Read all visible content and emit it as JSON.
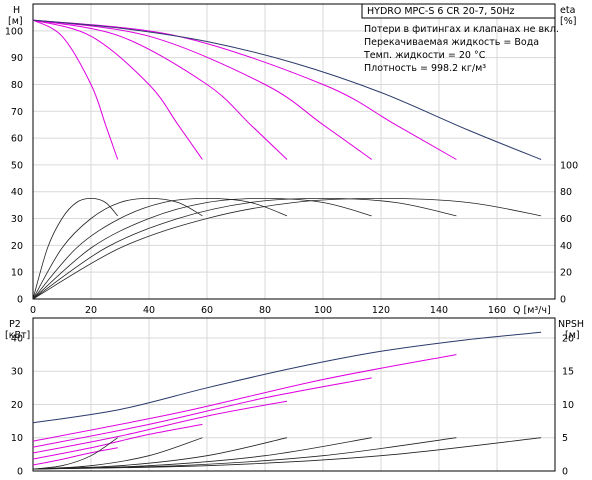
{
  "chart_data": [
    {
      "type": "line",
      "title": "HYDRO MPC-S 6 CR 20-7, 50Hz",
      "notes": [
        "Потери в фитингах и клапанах не вкл.",
        "Перекачиваемая жидкость = Вода",
        "Темп. жидкости = 20 °C",
        "Плотность = 998.2 кг/м³"
      ],
      "xlabel": "Q [м³/ч]",
      "xticks": [
        "0",
        "20",
        "40",
        "60",
        "80",
        "100",
        "120",
        "140",
        "160"
      ],
      "xlim": [
        0,
        180
      ],
      "y_left": {
        "label_top": "H",
        "label_unit": "[м]",
        "ylim": [
          0,
          110
        ],
        "ticks": [
          "0",
          "10",
          "20",
          "30",
          "40",
          "50",
          "60",
          "70",
          "80",
          "90",
          "100"
        ]
      },
      "y_right": {
        "label_top": "eta",
        "label_unit": "[%]",
        "ylim": [
          0,
          110
        ],
        "ticks": [
          "0",
          "20",
          "40",
          "60",
          "80",
          "100"
        ]
      },
      "head_curves": [
        {
          "pumps": 1,
          "color": "#e000e0",
          "x": [
            0,
            10,
            20,
            25,
            29.2
          ],
          "y": [
            104,
            98,
            80,
            65,
            52
          ]
        },
        {
          "pumps": 2,
          "color": "#e000e0",
          "x": [
            0,
            20,
            40,
            50,
            58.4
          ],
          "y": [
            104,
            98,
            80,
            65,
            52
          ]
        },
        {
          "pumps": 3,
          "color": "#e000e0",
          "x": [
            0,
            30,
            60,
            75,
            87.6
          ],
          "y": [
            104,
            98,
            80,
            65,
            52
          ]
        },
        {
          "pumps": 4,
          "color": "#e000e0",
          "x": [
            0,
            40,
            80,
            100,
            116.8
          ],
          "y": [
            104,
            98,
            80,
            65,
            52
          ]
        },
        {
          "pumps": 5,
          "color": "#e000e0",
          "x": [
            0,
            50,
            100,
            125,
            146
          ],
          "y": [
            104,
            98,
            80,
            65,
            52
          ]
        },
        {
          "pumps": 6,
          "color": "#2b3a6b",
          "x": [
            0,
            30,
            60,
            90,
            120,
            150,
            175.2
          ],
          "y": [
            104,
            101,
            96,
            88,
            77,
            63,
            52
          ]
        }
      ],
      "eta_curves": [
        {
          "pumps": 1,
          "x": [
            0,
            5,
            10,
            15,
            20,
            25,
            29.2
          ],
          "eta": [
            0,
            38,
            60,
            72,
            75,
            72,
            62
          ]
        },
        {
          "pumps": 2,
          "x": [
            0,
            10,
            20,
            30,
            40,
            50,
            58.4
          ],
          "eta": [
            0,
            38,
            60,
            72,
            75,
            72,
            62
          ]
        },
        {
          "pumps": 3,
          "x": [
            0,
            15,
            30,
            45,
            60,
            75,
            87.6
          ],
          "eta": [
            0,
            38,
            60,
            72,
            75,
            72,
            62
          ]
        },
        {
          "pumps": 4,
          "x": [
            0,
            20,
            40,
            60,
            80,
            100,
            116.8
          ],
          "eta": [
            0,
            38,
            60,
            72,
            75,
            72,
            62
          ]
        },
        {
          "pumps": 5,
          "x": [
            0,
            25,
            50,
            75,
            100,
            125,
            146
          ],
          "eta": [
            0,
            38,
            60,
            72,
            75,
            72,
            62
          ]
        },
        {
          "pumps": 6,
          "x": [
            0,
            30,
            60,
            90,
            120,
            150,
            175.2
          ],
          "eta": [
            0,
            38,
            60,
            72,
            75,
            72,
            62
          ]
        }
      ]
    },
    {
      "type": "line",
      "xlabel": "",
      "xlim": [
        0,
        180
      ],
      "y_left": {
        "label_top": "P2",
        "label_unit": "[кВт]",
        "ylim": [
          0,
          46
        ],
        "ticks": [
          "0",
          "10",
          "20",
          "30",
          "40"
        ]
      },
      "y_right": {
        "label_top": "NPSH",
        "label_unit": "[м]",
        "ylim": [
          0,
          23
        ],
        "ticks": [
          "0",
          "5",
          "10",
          "15",
          "20"
        ]
      },
      "power_curves": [
        {
          "pumps": 1,
          "color": "#e000e0",
          "x": [
            0,
            10,
            20,
            29.2
          ],
          "y": [
            1.8,
            3.5,
            5.5,
            7.0
          ]
        },
        {
          "pumps": 2,
          "color": "#e000e0",
          "x": [
            0,
            20,
            40,
            58.4
          ],
          "y": [
            3.6,
            7.0,
            11.0,
            14.0
          ]
        },
        {
          "pumps": 3,
          "color": "#e000e0",
          "x": [
            0,
            30,
            60,
            87.6
          ],
          "y": [
            5.4,
            10.5,
            16.5,
            21.0
          ]
        },
        {
          "pumps": 4,
          "color": "#e000e0",
          "x": [
            0,
            40,
            80,
            116.8
          ],
          "y": [
            7.2,
            14.0,
            22.0,
            28.0
          ]
        },
        {
          "pumps": 5,
          "color": "#e000e0",
          "x": [
            0,
            50,
            100,
            146
          ],
          "y": [
            9.0,
            17.5,
            27.5,
            35.0
          ]
        },
        {
          "pumps": 6,
          "color": "#2b3a6b",
          "x": [
            0,
            30,
            60,
            90,
            120,
            150,
            175.2
          ],
          "y": [
            14.5,
            18.5,
            25,
            31,
            36,
            39.5,
            41.7
          ]
        }
      ],
      "npsh_curves": [
        {
          "pumps": 1,
          "x": [
            0,
            10,
            20,
            29.2
          ],
          "y": [
            0.3,
            0.8,
            2.3,
            5.0
          ]
        },
        {
          "pumps": 2,
          "x": [
            0,
            20,
            40,
            58.4
          ],
          "y": [
            0.3,
            0.8,
            2.3,
            5.0
          ]
        },
        {
          "pumps": 3,
          "x": [
            0,
            30,
            60,
            87.6
          ],
          "y": [
            0.3,
            0.8,
            2.3,
            5.0
          ]
        },
        {
          "pumps": 4,
          "x": [
            0,
            40,
            80,
            116.8
          ],
          "y": [
            0.3,
            0.8,
            2.3,
            5.0
          ]
        },
        {
          "pumps": 5,
          "x": [
            0,
            50,
            100,
            146
          ],
          "y": [
            0.3,
            0.8,
            2.3,
            5.0
          ]
        },
        {
          "pumps": 6,
          "x": [
            0,
            60,
            120,
            175.2
          ],
          "y": [
            0.3,
            0.8,
            2.3,
            5.0
          ]
        }
      ]
    }
  ]
}
